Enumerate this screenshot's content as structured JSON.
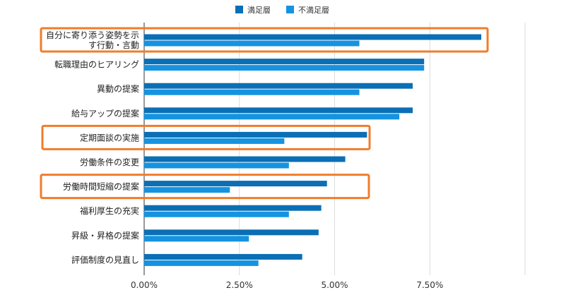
{
  "chart_data": {
    "type": "bar",
    "orientation": "horizontal",
    "categories": [
      [
        "自分に寄り添う姿勢を示",
        "す行動・言動"
      ],
      [
        "転職理由のヒアリング"
      ],
      [
        "異動の提案"
      ],
      [
        "給与アップの提案"
      ],
      [
        "定期面談の実施"
      ],
      [
        "労働条件の変更"
      ],
      [
        "労働時間短縮の提案"
      ],
      [
        "福利厚生の充実"
      ],
      [
        "昇級・昇格の提案"
      ],
      [
        "評価制度の見直し"
      ]
    ],
    "series": [
      {
        "name": "満足層",
        "color": "#0b6fb5",
        "values": [
          8.85,
          7.35,
          7.05,
          7.05,
          5.85,
          5.28,
          4.8,
          4.65,
          4.58,
          4.15
        ]
      },
      {
        "name": "不満足層",
        "color": "#1593e0",
        "values": [
          5.65,
          7.35,
          5.65,
          6.7,
          3.68,
          3.8,
          2.25,
          3.8,
          2.75,
          3.0
        ]
      }
    ],
    "xlim": [
      0,
      10
    ],
    "x_ticks": [
      0,
      2.5,
      5,
      7.5
    ],
    "x_tick_labels": [
      "0.00%",
      "2.50%",
      "5.00%",
      "7.50%"
    ],
    "grid": "vertical",
    "legend": "top-center",
    "highlighted_categories": [
      0,
      4,
      6
    ],
    "highlight_color": "#ef7d2b"
  }
}
